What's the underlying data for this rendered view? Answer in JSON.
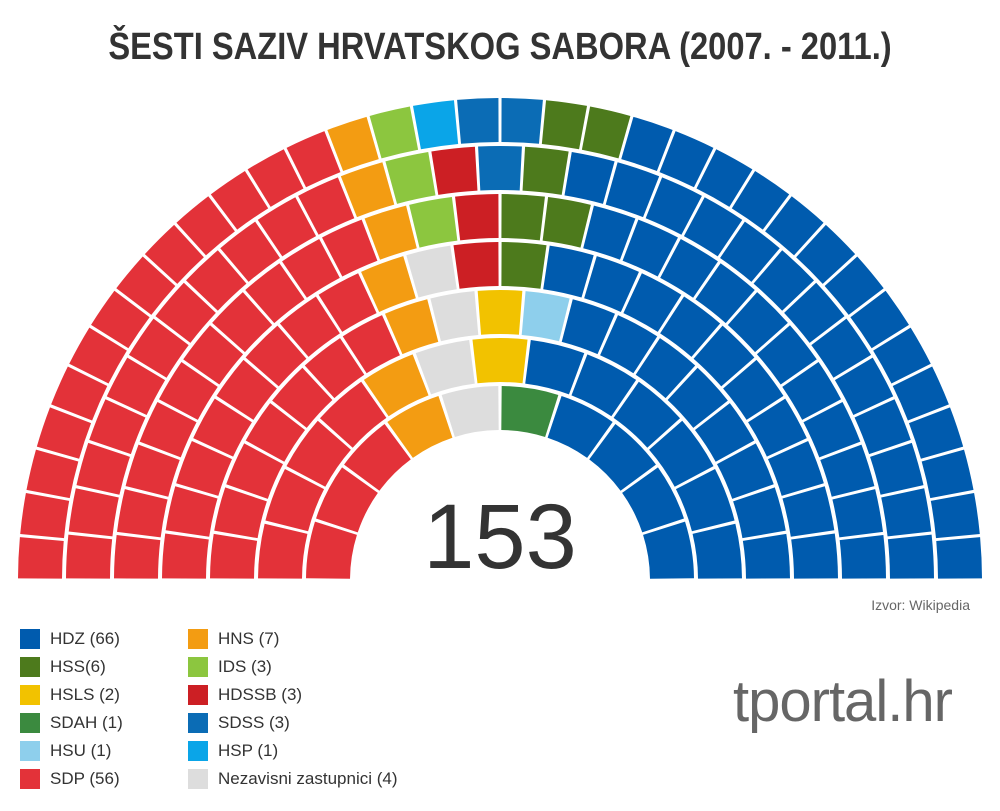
{
  "title": "ŠESTI SAZIV HRVATSKOG SABORA (2007. - 2011.)",
  "total_seats": "153",
  "source": "Izvor: Wikipedia",
  "brand": "tportal.hr",
  "legend": [
    {
      "label": "HDZ (66)",
      "color": "#005bae"
    },
    {
      "label": "HSS(6)",
      "color": "#4d7a1c"
    },
    {
      "label": "HSLS (2)",
      "color": "#f2c200"
    },
    {
      "label": "SDAH (1)",
      "color": "#3b8a3f"
    },
    {
      "label": "HSU (1)",
      "color": "#8ecfec"
    },
    {
      "label": "SDP (56)",
      "color": "#e33239"
    },
    {
      "label": "HNS (7)",
      "color": "#f39c12"
    },
    {
      "label": "IDS (3)",
      "color": "#8cc63f"
    },
    {
      "label": "HDSSB (3)",
      "color": "#cc1f24"
    },
    {
      "label": "SDSS (3)",
      "color": "#0b6cb5"
    },
    {
      "label": "HSP (1)",
      "color": "#0aa5e8"
    },
    {
      "label": "Nezavisni zastupnici (4)",
      "color": "#dddddd"
    }
  ],
  "chart_data": {
    "type": "parliament",
    "total": 153,
    "colors": {
      "HDZ": "#005bae",
      "HSS": "#4d7a1c",
      "HSLS": "#f2c200",
      "SDAH": "#3b8a3f",
      "HSU": "#8ecfec",
      "SDP": "#e33239",
      "HNS": "#f39c12",
      "IDS": "#8cc63f",
      "HDSSB": "#cc1f24",
      "SDSS": "#0b6cb5",
      "HSP": "#0aa5e8",
      "NEZ": "#dddddd"
    },
    "rows": [
      [
        [
          "SDP",
          13
        ],
        [
          "HNS",
          1
        ],
        [
          "IDS",
          1
        ],
        [
          "HSP",
          1
        ],
        [
          "SDSS",
          2
        ],
        [
          "HSS",
          2
        ],
        [
          "HDZ",
          14
        ]
      ],
      [
        [
          "SDP",
          11
        ],
        [
          "HNS",
          1
        ],
        [
          "IDS",
          1
        ],
        [
          "HDSSB",
          1
        ],
        [
          "SDSS",
          1
        ],
        [
          "HSS",
          1
        ],
        [
          "HDZ",
          13
        ]
      ],
      [
        [
          "SDP",
          10
        ],
        [
          "HNS",
          1
        ],
        [
          "IDS",
          1
        ],
        [
          "HDSSB",
          1
        ],
        [
          "HSS",
          2
        ],
        [
          "HDZ",
          11
        ]
      ],
      [
        [
          "SDP",
          8
        ],
        [
          "HNS",
          1
        ],
        [
          "NEZ",
          1
        ],
        [
          "HDSSB",
          1
        ],
        [
          "HSS",
          1
        ],
        [
          "HDZ",
          10
        ]
      ],
      [
        [
          "SDP",
          7
        ],
        [
          "HNS",
          1
        ],
        [
          "NEZ",
          1
        ],
        [
          "HSLS",
          1
        ],
        [
          "HSU",
          1
        ],
        [
          "HDZ",
          8
        ]
      ],
      [
        [
          "SDP",
          4
        ],
        [
          "HNS",
          1
        ],
        [
          "NEZ",
          1
        ],
        [
          "HSLS",
          1
        ],
        [
          "HDZ",
          6
        ]
      ],
      [
        [
          "SDP",
          3
        ],
        [
          "HNS",
          1
        ],
        [
          "NEZ",
          1
        ],
        [
          "SDAH",
          1
        ],
        [
          "HDZ",
          4
        ]
      ]
    ]
  }
}
